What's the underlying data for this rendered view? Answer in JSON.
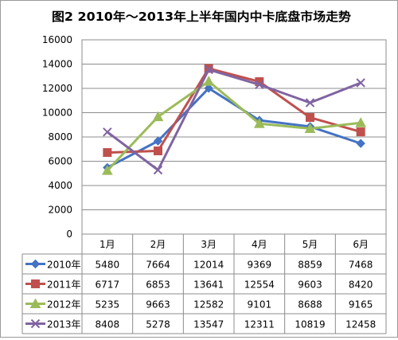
{
  "chart_data": {
    "type": "line",
    "title": "图2   2010年～2013年上半年国内中卡底盘市场走势",
    "categories": [
      "1月",
      "2月",
      "3月",
      "4月",
      "5月",
      "6月"
    ],
    "ylim": [
      0,
      16000
    ],
    "yticks": [
      "0",
      "2000",
      "4000",
      "6000",
      "8000",
      "10000",
      "12000",
      "14000",
      "16000"
    ],
    "grid": true,
    "legend_position": "data-table-left",
    "series": [
      {
        "name": "2010年",
        "color": "#4472C4",
        "marker": "diamond",
        "values": [
          5480,
          7664,
          12014,
          9369,
          8859,
          7468
        ]
      },
      {
        "name": "2011年",
        "color": "#C0504D",
        "marker": "square",
        "values": [
          6717,
          6853,
          13641,
          12554,
          9603,
          8420
        ]
      },
      {
        "name": "2012年",
        "color": "#9BBB59",
        "marker": "triangle",
        "values": [
          5235,
          9663,
          12582,
          9101,
          8688,
          9165
        ]
      },
      {
        "name": "2013年",
        "color": "#8064A2",
        "marker": "x",
        "values": [
          8408,
          5278,
          13547,
          12311,
          10819,
          12458
        ]
      }
    ]
  }
}
